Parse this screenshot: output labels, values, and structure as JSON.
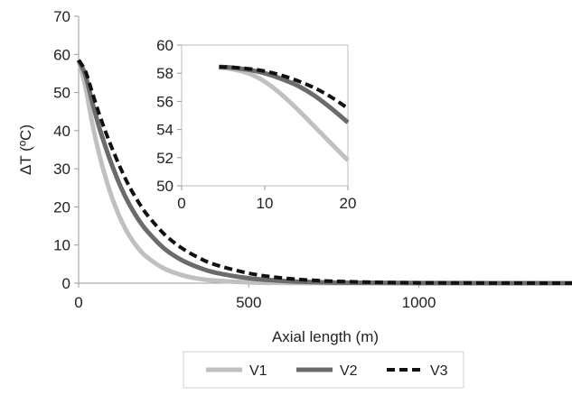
{
  "chart_data": [
    {
      "type": "line",
      "xlabel": "Axial length (m)",
      "ylabel": "ΔT (ºC)",
      "xlim": [
        0,
        1450
      ],
      "ylim": [
        0,
        70
      ],
      "xticks": [
        "0",
        "500",
        "1000"
      ],
      "yticks": [
        "0",
        "10",
        "20",
        "30",
        "40",
        "50",
        "60",
        "70"
      ],
      "grid": false,
      "legend": "bottom",
      "series": [
        {
          "name": "V1",
          "color": "#c0c0c0",
          "style": "solid",
          "x": [
            0,
            20,
            40,
            60,
            80,
            100,
            125,
            150,
            175,
            200,
            250,
            300,
            350,
            400,
            500,
            600,
            700,
            800,
            1000,
            1450
          ],
          "y": [
            58.5,
            51.5,
            42,
            34,
            27.5,
            22,
            16.5,
            12.3,
            9.2,
            6.9,
            3.9,
            2.2,
            1.2,
            0.7,
            0.22,
            0.07,
            0.02,
            0,
            0,
            0
          ]
        },
        {
          "name": "V2",
          "color": "#6b6b6b",
          "style": "solid",
          "x": [
            0,
            20,
            40,
            60,
            80,
            100,
            125,
            150,
            175,
            200,
            250,
            300,
            350,
            400,
            500,
            600,
            700,
            800,
            1000,
            1450
          ],
          "y": [
            58.5,
            54.5,
            47.5,
            41,
            35.5,
            30.5,
            25,
            20.5,
            16.8,
            13.8,
            9.2,
            6.2,
            4.2,
            2.8,
            1.3,
            0.6,
            0.27,
            0.12,
            0.03,
            0
          ]
        },
        {
          "name": "V3",
          "color": "#111111",
          "style": "dashed",
          "x": [
            0,
            20,
            40,
            60,
            80,
            100,
            125,
            150,
            175,
            200,
            250,
            300,
            350,
            400,
            500,
            600,
            700,
            800,
            1000,
            1450
          ],
          "y": [
            58.5,
            55.6,
            50,
            44.5,
            39.5,
            35,
            29.8,
            25.2,
            21.4,
            18.1,
            13,
            9.4,
            6.8,
            4.9,
            2.6,
            1.35,
            0.7,
            0.37,
            0.1,
            0
          ]
        }
      ]
    },
    {
      "type": "line",
      "xlim": [
        0,
        20
      ],
      "ylim": [
        50,
        60
      ],
      "xticks": [
        "0",
        "10",
        "20"
      ],
      "yticks": [
        "50",
        "52",
        "54",
        "56",
        "58",
        "60"
      ],
      "grid": false,
      "series": [
        {
          "name": "V1",
          "color": "#c0c0c0",
          "style": "solid",
          "x": [
            4.5,
            6,
            8,
            10,
            12,
            14,
            16,
            18,
            20
          ],
          "y": [
            58.4,
            58.3,
            58.0,
            57.4,
            56.5,
            55.4,
            54.2,
            53.0,
            51.8
          ]
        },
        {
          "name": "V2",
          "color": "#6b6b6b",
          "style": "solid",
          "x": [
            4.5,
            6,
            8,
            10,
            12,
            14,
            16,
            18,
            20
          ],
          "y": [
            58.45,
            58.4,
            58.25,
            58.0,
            57.6,
            57.1,
            56.4,
            55.5,
            54.5
          ]
        },
        {
          "name": "V3",
          "color": "#111111",
          "style": "dashed",
          "x": [
            4.5,
            6,
            8,
            10,
            12,
            14,
            16,
            18,
            20
          ],
          "y": [
            58.45,
            58.42,
            58.32,
            58.15,
            57.85,
            57.45,
            56.95,
            56.3,
            55.5
          ]
        }
      ]
    }
  ]
}
